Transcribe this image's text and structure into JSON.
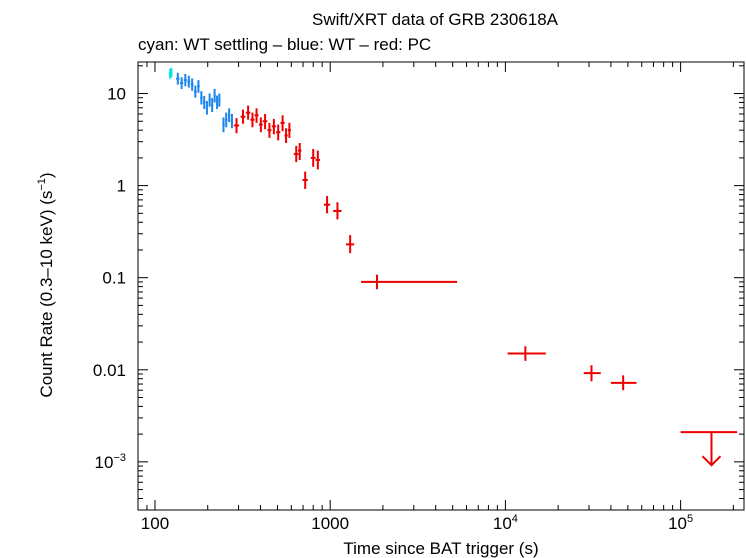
{
  "chart_data": {
    "type": "scatter",
    "title": "Swift/XRT data of GRB 230618A",
    "subtitle": "cyan: WT settling – blue: WT – red: PC",
    "xlabel": "Time since BAT trigger (s)",
    "ylabel_main": "Count Rate (0.3–10 keV) (s",
    "ylabel_sup": "−1",
    "ylabel_end": ")",
    "x_scale": "log",
    "y_scale": "log",
    "xlim": [
      80,
      230000
    ],
    "ylim": [
      0.0003,
      22
    ],
    "x_ticks": [
      {
        "value": 100,
        "label": "100",
        "sup": ""
      },
      {
        "value": 1000,
        "label": "1000",
        "sup": ""
      },
      {
        "value": 10000,
        "label": "10",
        "sup": "4"
      },
      {
        "value": 100000,
        "label": "10",
        "sup": "5"
      }
    ],
    "y_ticks": [
      {
        "value": 10,
        "label": "10",
        "sup": ""
      },
      {
        "value": 1,
        "label": "1",
        "sup": ""
      },
      {
        "value": 0.1,
        "label": "0.1",
        "sup": ""
      },
      {
        "value": 0.01,
        "label": "0.01",
        "sup": ""
      },
      {
        "value": 0.001,
        "label": "10",
        "sup": "−3"
      }
    ],
    "series": [
      {
        "color": "#00e5e5",
        "points": [
          {
            "x": 122,
            "y": 16.5,
            "xlo": 120,
            "xhi": 124,
            "ylo": 14.5,
            "yhi": 18.5
          },
          {
            "x": 124,
            "y": 17.0,
            "xlo": 122,
            "xhi": 126,
            "ylo": 15.0,
            "yhi": 19.0
          }
        ]
      },
      {
        "color": "#1c86ee",
        "points": [
          {
            "x": 135,
            "y": 14.5,
            "xlo": 132,
            "xhi": 138,
            "ylo": 12.5,
            "yhi": 16.8
          },
          {
            "x": 142,
            "y": 13.0,
            "xlo": 139,
            "xhi": 145,
            "ylo": 11.2,
            "yhi": 15.0
          },
          {
            "x": 149,
            "y": 14.0,
            "xlo": 146,
            "xhi": 152,
            "ylo": 12.0,
            "yhi": 16.3
          },
          {
            "x": 156,
            "y": 13.5,
            "xlo": 153,
            "xhi": 159,
            "ylo": 11.6,
            "yhi": 15.6
          },
          {
            "x": 163,
            "y": 12.5,
            "xlo": 160,
            "xhi": 166,
            "ylo": 10.7,
            "yhi": 14.6
          },
          {
            "x": 170,
            "y": 10.5,
            "xlo": 167,
            "xhi": 173,
            "ylo": 9.0,
            "yhi": 12.2
          },
          {
            "x": 177,
            "y": 12.0,
            "xlo": 174,
            "xhi": 180,
            "ylo": 10.2,
            "yhi": 14.0
          },
          {
            "x": 184,
            "y": 9.0,
            "xlo": 181,
            "xhi": 187,
            "ylo": 7.6,
            "yhi": 10.6
          },
          {
            "x": 191,
            "y": 8.0,
            "xlo": 188,
            "xhi": 194,
            "ylo": 6.8,
            "yhi": 9.4
          },
          {
            "x": 198,
            "y": 7.0,
            "xlo": 195,
            "xhi": 201,
            "ylo": 5.9,
            "yhi": 8.3
          },
          {
            "x": 205,
            "y": 8.5,
            "xlo": 202,
            "xhi": 208,
            "ylo": 7.2,
            "yhi": 10.0
          },
          {
            "x": 212,
            "y": 7.5,
            "xlo": 209,
            "xhi": 215,
            "ylo": 6.3,
            "yhi": 8.9
          },
          {
            "x": 219,
            "y": 9.5,
            "xlo": 216,
            "xhi": 222,
            "ylo": 8.0,
            "yhi": 11.2
          },
          {
            "x": 226,
            "y": 8.0,
            "xlo": 223,
            "xhi": 229,
            "ylo": 6.8,
            "yhi": 9.5
          },
          {
            "x": 233,
            "y": 8.5,
            "xlo": 230,
            "xhi": 236,
            "ylo": 7.2,
            "yhi": 10.0
          },
          {
            "x": 246,
            "y": 4.6,
            "xlo": 242,
            "xhi": 250,
            "ylo": 3.8,
            "yhi": 5.5
          },
          {
            "x": 255,
            "y": 5.2,
            "xlo": 251,
            "xhi": 259,
            "ylo": 4.3,
            "yhi": 6.2
          },
          {
            "x": 265,
            "y": 5.8,
            "xlo": 261,
            "xhi": 269,
            "ylo": 4.9,
            "yhi": 6.9
          },
          {
            "x": 275,
            "y": 5.0,
            "xlo": 271,
            "xhi": 279,
            "ylo": 4.2,
            "yhi": 6.0
          }
        ]
      },
      {
        "color": "#ee0000",
        "points": [
          {
            "x": 292,
            "y": 4.5,
            "xlo": 282,
            "xhi": 302,
            "ylo": 3.7,
            "yhi": 5.4
          },
          {
            "x": 318,
            "y": 5.6,
            "xlo": 308,
            "xhi": 328,
            "ylo": 4.7,
            "yhi": 6.7
          },
          {
            "x": 340,
            "y": 6.2,
            "xlo": 330,
            "xhi": 350,
            "ylo": 5.2,
            "yhi": 7.4
          },
          {
            "x": 360,
            "y": 5.2,
            "xlo": 350,
            "xhi": 370,
            "ylo": 4.3,
            "yhi": 6.2
          },
          {
            "x": 380,
            "y": 5.8,
            "xlo": 370,
            "xhi": 390,
            "ylo": 4.8,
            "yhi": 6.9
          },
          {
            "x": 402,
            "y": 4.6,
            "xlo": 392,
            "xhi": 412,
            "ylo": 3.8,
            "yhi": 5.5
          },
          {
            "x": 425,
            "y": 5.0,
            "xlo": 412,
            "xhi": 438,
            "ylo": 4.1,
            "yhi": 6.0
          },
          {
            "x": 450,
            "y": 4.0,
            "xlo": 438,
            "xhi": 462,
            "ylo": 3.3,
            "yhi": 4.8
          },
          {
            "x": 477,
            "y": 4.4,
            "xlo": 464,
            "xhi": 490,
            "ylo": 3.6,
            "yhi": 5.3
          },
          {
            "x": 505,
            "y": 3.8,
            "xlo": 491,
            "xhi": 519,
            "ylo": 3.1,
            "yhi": 4.6
          },
          {
            "x": 535,
            "y": 4.8,
            "xlo": 520,
            "xhi": 550,
            "ylo": 3.9,
            "yhi": 5.8
          },
          {
            "x": 560,
            "y": 3.5,
            "xlo": 548,
            "xhi": 572,
            "ylo": 2.9,
            "yhi": 4.2
          },
          {
            "x": 585,
            "y": 4.0,
            "xlo": 573,
            "xhi": 597,
            "ylo": 3.3,
            "yhi": 4.8
          },
          {
            "x": 640,
            "y": 2.2,
            "xlo": 620,
            "xhi": 660,
            "ylo": 1.8,
            "yhi": 2.7
          },
          {
            "x": 670,
            "y": 2.4,
            "xlo": 655,
            "xhi": 685,
            "ylo": 1.9,
            "yhi": 2.9
          },
          {
            "x": 720,
            "y": 1.15,
            "xlo": 695,
            "xhi": 745,
            "ylo": 0.92,
            "yhi": 1.42
          },
          {
            "x": 800,
            "y": 2.0,
            "xlo": 775,
            "xhi": 825,
            "ylo": 1.6,
            "yhi": 2.5
          },
          {
            "x": 850,
            "y": 1.9,
            "xlo": 825,
            "xhi": 875,
            "ylo": 1.5,
            "yhi": 2.4
          },
          {
            "x": 960,
            "y": 0.62,
            "xlo": 920,
            "xhi": 1000,
            "ylo": 0.5,
            "yhi": 0.77
          },
          {
            "x": 1100,
            "y": 0.53,
            "xlo": 1040,
            "xhi": 1160,
            "ylo": 0.43,
            "yhi": 0.66
          },
          {
            "x": 1300,
            "y": 0.23,
            "xlo": 1230,
            "xhi": 1370,
            "ylo": 0.185,
            "yhi": 0.29
          },
          {
            "x": 1850,
            "y": 0.09,
            "xlo": 1500,
            "xhi": 5300,
            "ylo": 0.075,
            "yhi": 0.108
          },
          {
            "x": 13000,
            "y": 0.015,
            "xlo": 10300,
            "xhi": 17000,
            "ylo": 0.0125,
            "yhi": 0.018
          },
          {
            "x": 31000,
            "y": 0.0092,
            "xlo": 28000,
            "xhi": 35000,
            "ylo": 0.0075,
            "yhi": 0.0112
          },
          {
            "x": 47000,
            "y": 0.0072,
            "xlo": 40000,
            "xhi": 56000,
            "ylo": 0.006,
            "yhi": 0.0087
          }
        ]
      }
    ],
    "upper_limits": [
      {
        "x": 150000,
        "y": 0.0021,
        "xlo": 100000,
        "xhi": 210000,
        "color": "#ee0000"
      }
    ],
    "grid": false,
    "legend": "none"
  }
}
